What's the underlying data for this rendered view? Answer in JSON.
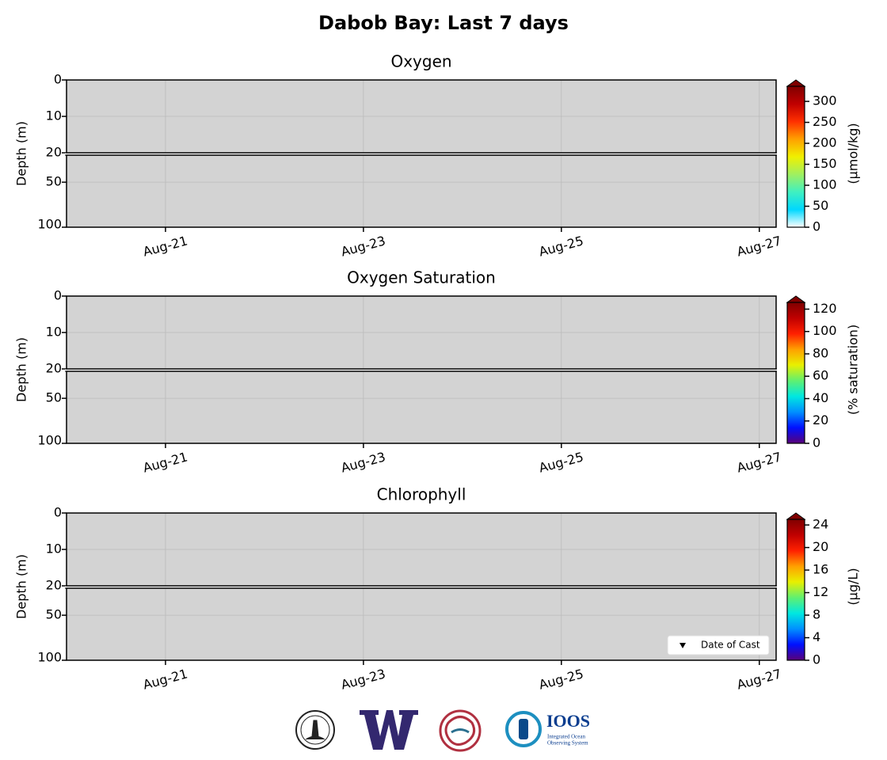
{
  "title": "Dabob Bay: Last 7 days",
  "chart_data": [
    {
      "type": "contour",
      "title": "Oxygen",
      "ylabel": "Depth (m)",
      "yticks": [
        0,
        10,
        20,
        50,
        100
      ],
      "ylim_upper": [
        0,
        20
      ],
      "ylim_lower": [
        20,
        100
      ],
      "xlim": [
        20,
        27.17
      ],
      "xticks": [
        {
          "value": 21,
          "label": "Aug-21"
        },
        {
          "value": 23,
          "label": "Aug-23"
        },
        {
          "value": 25,
          "label": "Aug-25"
        },
        {
          "value": 27,
          "label": "Aug-27"
        }
      ],
      "grid": true,
      "background": "#d3d3d3",
      "colorbar": {
        "label": "(μmol/kg)",
        "lim": [
          0,
          336
        ],
        "ticks": [
          0,
          50,
          100,
          150,
          200,
          250,
          300
        ],
        "extend": "max",
        "colors": [
          "#ffffff",
          "#00d8ff",
          "#40f0c0",
          "#a0f060",
          "#f0f000",
          "#ffa000",
          "#ff3000",
          "#c00000",
          "#800000"
        ]
      }
    },
    {
      "type": "contour",
      "title": "Oxygen Saturation",
      "ylabel": "Depth (m)",
      "yticks": [
        0,
        10,
        20,
        50,
        100
      ],
      "ylim_upper": [
        0,
        20
      ],
      "ylim_lower": [
        20,
        100
      ],
      "xlim": [
        20,
        27.17
      ],
      "xticks": [
        {
          "value": 21,
          "label": "Aug-21"
        },
        {
          "value": 23,
          "label": "Aug-23"
        },
        {
          "value": 25,
          "label": "Aug-25"
        },
        {
          "value": 27,
          "label": "Aug-27"
        }
      ],
      "grid": true,
      "background": "#d3d3d3",
      "colorbar": {
        "label": "(% saturation)",
        "lim": [
          0,
          126
        ],
        "ticks": [
          0,
          20,
          40,
          60,
          80,
          100,
          120
        ],
        "extend": "max",
        "colors": [
          "#5a0078",
          "#0010ff",
          "#0090ff",
          "#00e8e0",
          "#60f070",
          "#e8f000",
          "#ffa000",
          "#ff2000",
          "#c00000",
          "#800000"
        ]
      }
    },
    {
      "type": "contour",
      "title": "Chlorophyll",
      "ylabel": "Depth (m)",
      "yticks": [
        0,
        10,
        20,
        50,
        100
      ],
      "ylim_upper": [
        0,
        20
      ],
      "ylim_lower": [
        20,
        100
      ],
      "xlim": [
        20,
        27.17
      ],
      "xticks": [
        {
          "value": 21,
          "label": "Aug-21"
        },
        {
          "value": 23,
          "label": "Aug-23"
        },
        {
          "value": 25,
          "label": "Aug-25"
        },
        {
          "value": 27,
          "label": "Aug-27"
        }
      ],
      "grid": true,
      "background": "#d3d3d3",
      "legend": {
        "label": "Date of Cast",
        "loc": "lower right"
      },
      "colorbar": {
        "label": "(μg/L)",
        "lim": [
          0,
          25
        ],
        "ticks": [
          0,
          4,
          8,
          12,
          16,
          20,
          24
        ],
        "extend": "max",
        "colors": [
          "#5a0078",
          "#0010ff",
          "#0090ff",
          "#00e8e0",
          "#60f070",
          "#e8f000",
          "#ffa000",
          "#ff2000",
          "#c00000",
          "#800000"
        ]
      }
    }
  ],
  "footer": {
    "ioos": "IOOS",
    "ioos_sub_1": "Integrated Ocean",
    "ioos_sub_2": "Observing System"
  }
}
